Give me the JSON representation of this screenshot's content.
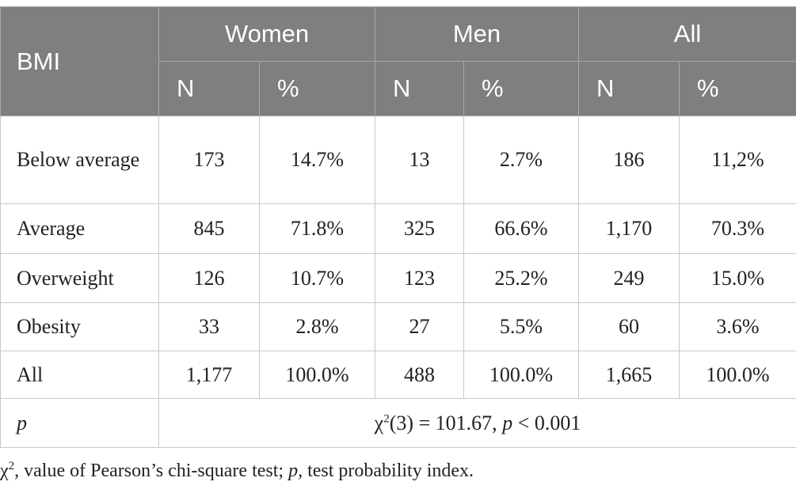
{
  "table": {
    "header": [
      "BMI",
      "Women",
      "Men",
      "All"
    ],
    "subheader": [
      "N",
      "%",
      "N",
      "%",
      "N",
      "%"
    ],
    "rows": [
      [
        "Below average",
        "173",
        "14.7%",
        "13",
        "2.7%",
        "186",
        "11,2%"
      ],
      [
        "Average",
        "845",
        "71.8%",
        "325",
        "66.6%",
        "1,170",
        "70.3%"
      ],
      [
        "Overweight",
        "126",
        "10.7%",
        "123",
        "25.2%",
        "249",
        "15.0%"
      ],
      [
        "Obesity",
        "33",
        "2.8%",
        "27",
        "5.5%",
        "60",
        "3.6%"
      ],
      [
        "All",
        "1,177",
        "100.0%",
        "488",
        "100.0%",
        "1,665",
        "100.0%"
      ]
    ],
    "p_row": {
      "label": "p",
      "parts": [
        "χ",
        "2",
        "(3) = 101.67, ",
        "p",
        " < 0.001"
      ]
    }
  },
  "footnote": [
    "χ",
    "2",
    ", value of Pearson’s chi-square test; ",
    "p",
    ", test probability index."
  ]
}
